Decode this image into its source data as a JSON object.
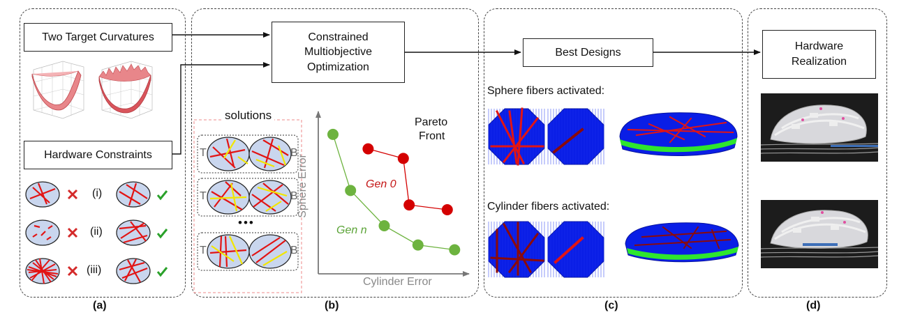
{
  "panel_a": {
    "target_box": "Two Target Curvatures",
    "constraints_box": "Hardware Constraints",
    "rows": [
      {
        "label": "(i)"
      },
      {
        "label": "(ii)"
      },
      {
        "label": "(iii)"
      }
    ],
    "caption": "(a)"
  },
  "panel_b": {
    "optimization_box": [
      "Constrained",
      "Multiobjective",
      "Optimization"
    ],
    "solutions_title": "solutions",
    "top_marker": "T",
    "bottom_marker": "B",
    "ellipsis": "•••",
    "pareto_label": [
      "Pareto",
      "Front"
    ],
    "caption": "(b)"
  },
  "chart_data": {
    "type": "scatter",
    "xlabel": "Cylinder Error",
    "ylabel": "Sphere Error",
    "series": [
      {
        "name": "Gen 0",
        "color": "#d40000",
        "points": [
          [
            0.34,
            0.78
          ],
          [
            0.58,
            0.72
          ],
          [
            0.62,
            0.43
          ],
          [
            0.88,
            0.4
          ]
        ]
      },
      {
        "name": "Gen n",
        "color": "#6db33f",
        "points": [
          [
            0.1,
            0.87
          ],
          [
            0.22,
            0.52
          ],
          [
            0.45,
            0.3
          ],
          [
            0.68,
            0.18
          ],
          [
            0.93,
            0.15
          ]
        ]
      }
    ]
  },
  "panel_c": {
    "best_box": "Best Designs",
    "sphere_label": "Sphere fibers activated:",
    "cylinder_label": "Cylinder fibers activated:",
    "caption": "(c)"
  },
  "panel_d": {
    "hardware_box": [
      "Hardware",
      "Realization"
    ],
    "caption": "(d)"
  },
  "colors": {
    "fiber_red": "#e21414",
    "fiber_yellow": "#f2e600",
    "disk_fill": "#c9d6ee",
    "check_green": "#2aa12a",
    "grid_blue": "#0a1ee6",
    "dark_red": "#8b0a0a",
    "layer_green": "#2ee62e"
  }
}
